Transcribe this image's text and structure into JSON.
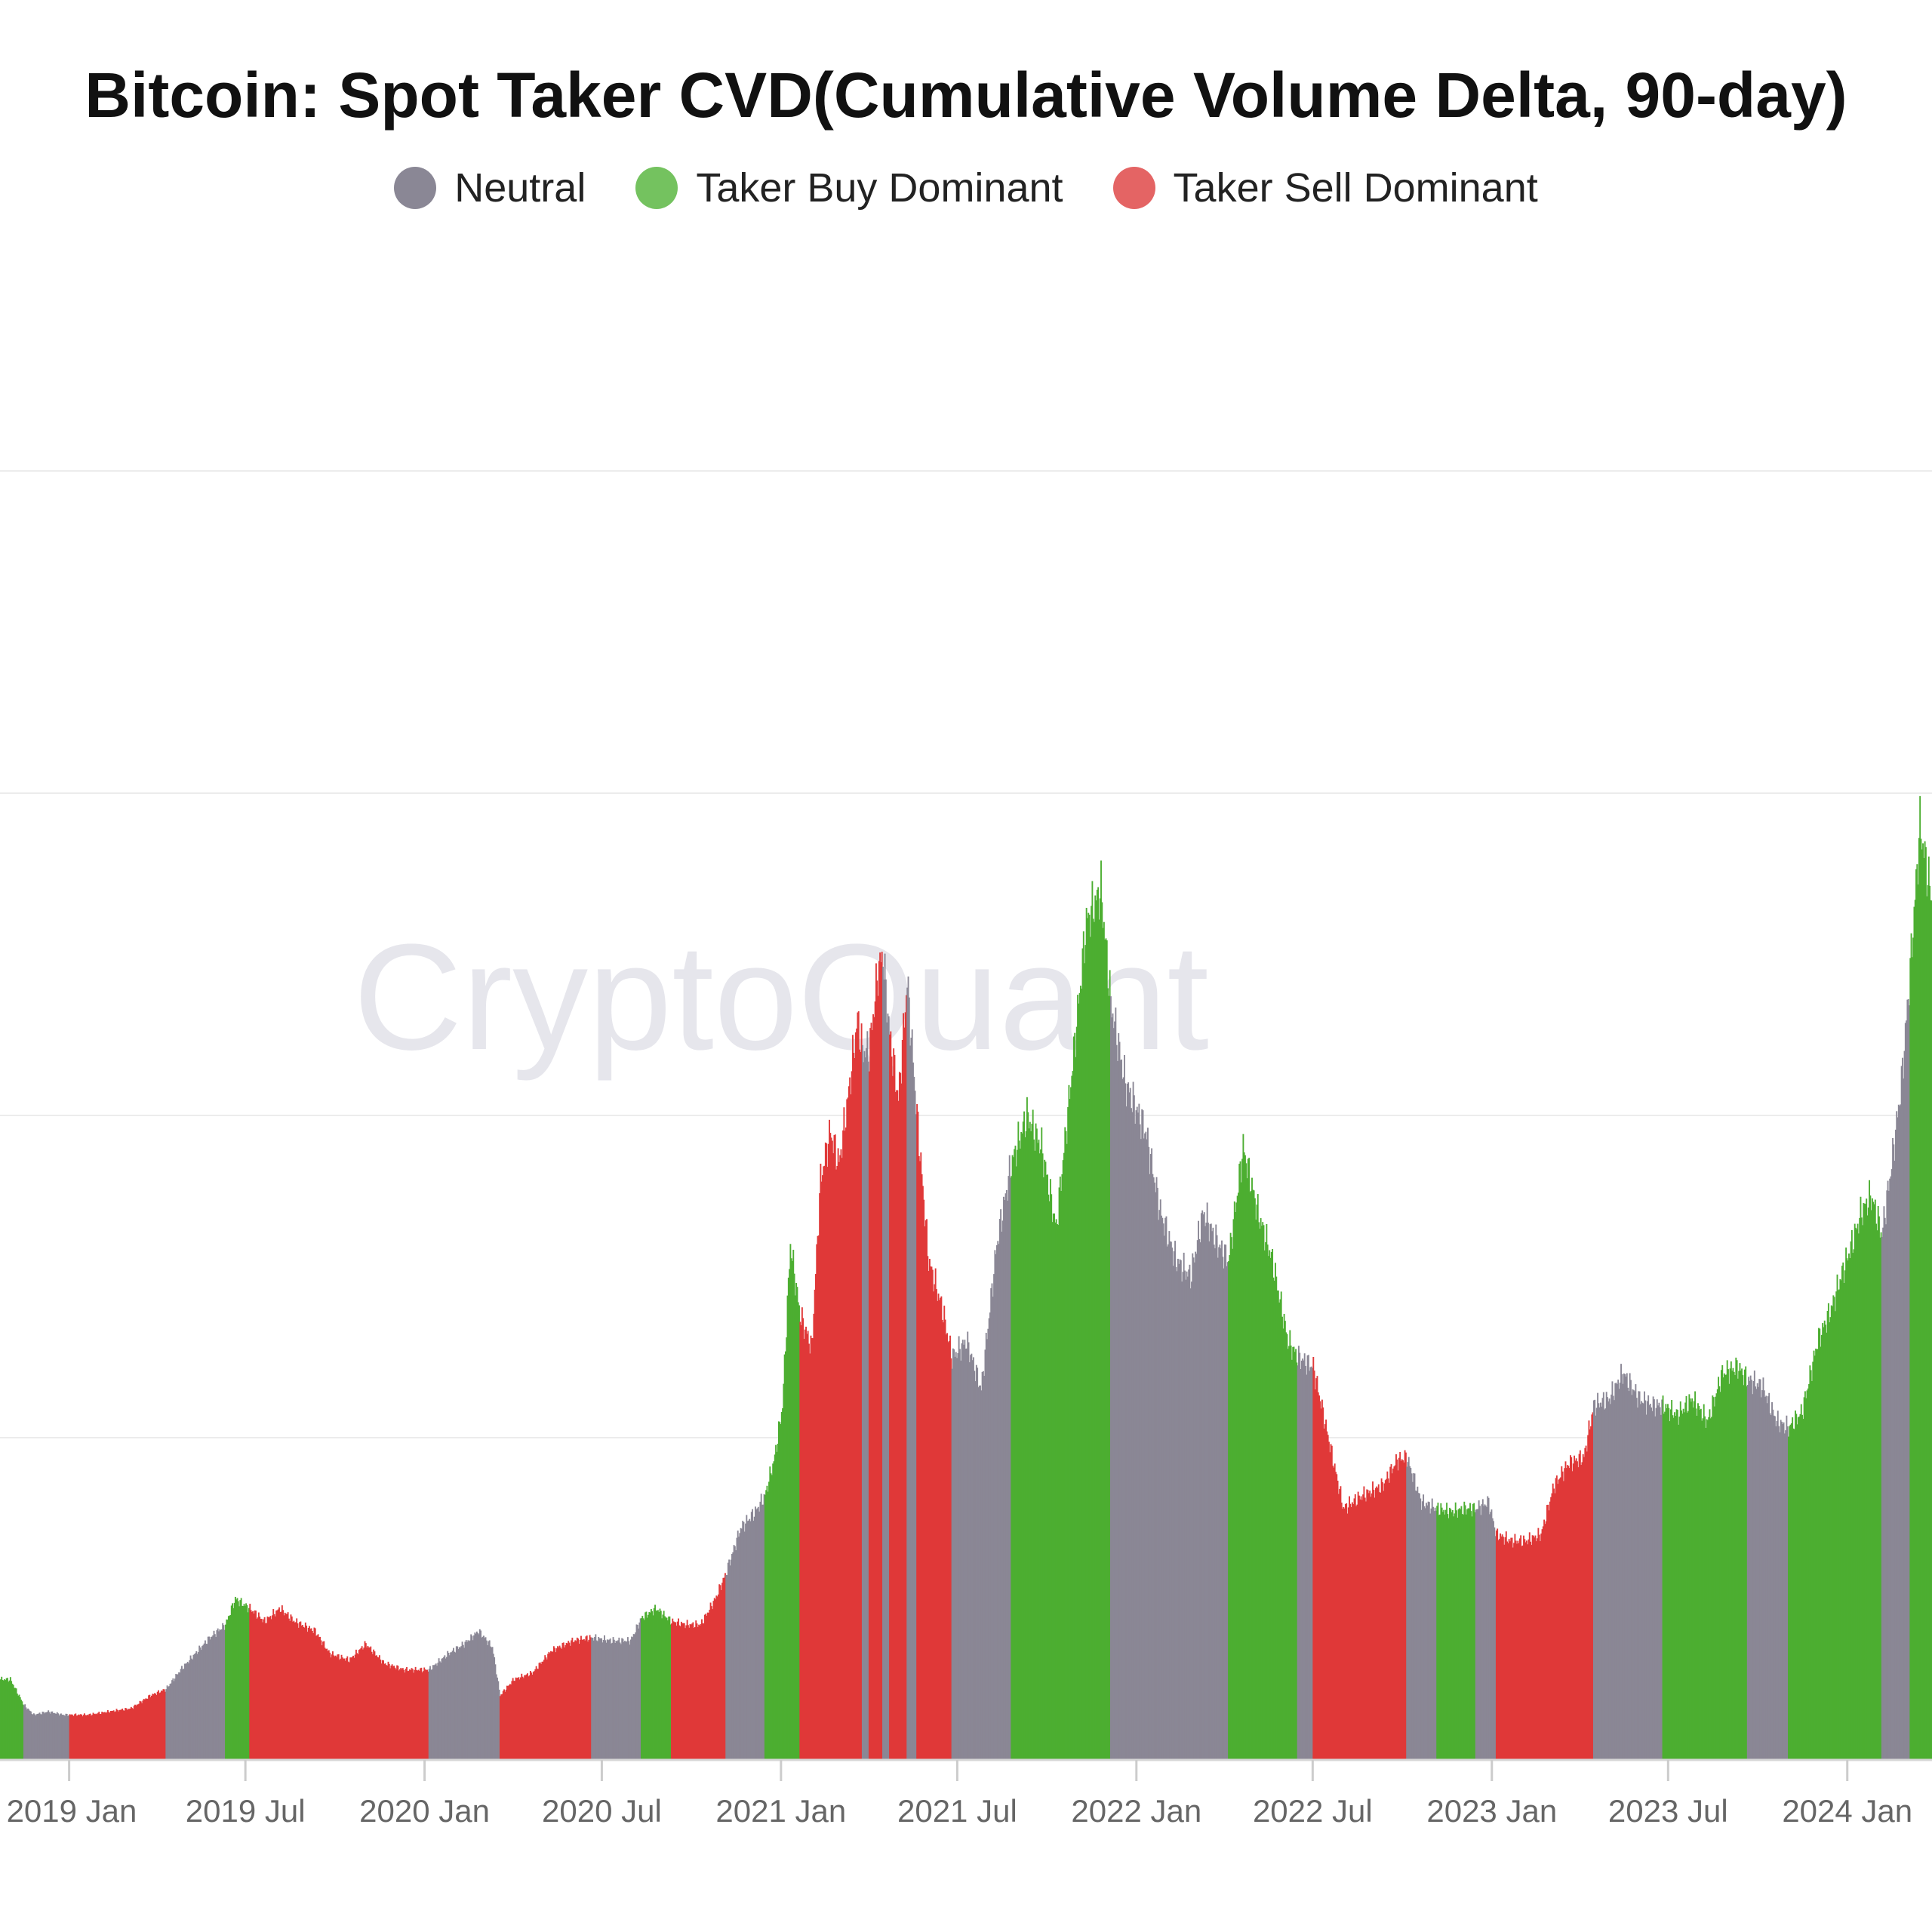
{
  "chart_data": {
    "type": "bar",
    "title": "Bitcoin: Spot Taker CVD(Cumulative Volume Delta, 90-day)",
    "watermark": "CryptoQuant",
    "legend": {
      "placement": "top-center",
      "items": [
        {
          "key": "neutral",
          "label": "Neutral",
          "color": "#8a8795"
        },
        {
          "key": "buy",
          "label": "Taker Buy Dominant",
          "color": "#4cae31"
        },
        {
          "key": "sell",
          "label": "Taker Sell Dominant",
          "color": "#e03838"
        }
      ]
    },
    "x_ticks": [
      "2019 Jan",
      "2019 Jul",
      "2020 Jan",
      "2020 Jul",
      "2021 Jan",
      "2021 Jul",
      "2022 Jan",
      "2022 Jul",
      "2023 Jan",
      "2023 Jul",
      "2024 Jan"
    ],
    "xlim": [
      "2018-10-22",
      "2024-03-28"
    ],
    "ylim": [
      0,
      4
    ],
    "y_unit_note": "",
    "grid": true,
    "points": [
      [
        "2018-10-22",
        0.25,
        "buy"
      ],
      [
        "2018-11-01",
        0.25,
        "buy"
      ],
      [
        "2018-11-08",
        0.21,
        "buy"
      ],
      [
        "2018-11-15",
        0.17,
        "neutral"
      ],
      [
        "2018-11-25",
        0.14,
        "neutral"
      ],
      [
        "2018-12-10",
        0.15,
        "neutral"
      ],
      [
        "2018-12-25",
        0.14,
        "neutral"
      ],
      [
        "2019-01-01",
        0.14,
        "sell"
      ],
      [
        "2019-01-20",
        0.14,
        "sell"
      ],
      [
        "2019-02-10",
        0.15,
        "sell"
      ],
      [
        "2019-03-05",
        0.16,
        "sell"
      ],
      [
        "2019-03-25",
        0.2,
        "sell"
      ],
      [
        "2019-04-10",
        0.22,
        "neutral"
      ],
      [
        "2019-04-25",
        0.28,
        "neutral"
      ],
      [
        "2019-05-10",
        0.33,
        "neutral"
      ],
      [
        "2019-05-25",
        0.38,
        "neutral"
      ],
      [
        "2019-06-10",
        0.42,
        "buy"
      ],
      [
        "2019-06-20",
        0.5,
        "buy"
      ],
      [
        "2019-07-05",
        0.47,
        "sell"
      ],
      [
        "2019-07-20",
        0.43,
        "sell"
      ],
      [
        "2019-08-05",
        0.47,
        "sell"
      ],
      [
        "2019-08-20",
        0.43,
        "sell"
      ],
      [
        "2019-09-10",
        0.4,
        "sell"
      ],
      [
        "2019-09-25",
        0.33,
        "sell"
      ],
      [
        "2019-10-15",
        0.31,
        "sell"
      ],
      [
        "2019-11-01",
        0.36,
        "sell"
      ],
      [
        "2019-11-20",
        0.3,
        "sell"
      ],
      [
        "2019-12-10",
        0.28,
        "sell"
      ],
      [
        "2020-01-05",
        0.28,
        "neutral"
      ],
      [
        "2020-01-25",
        0.33,
        "neutral"
      ],
      [
        "2020-02-10",
        0.36,
        "neutral"
      ],
      [
        "2020-02-25",
        0.4,
        "neutral"
      ],
      [
        "2020-03-10",
        0.35,
        "neutral"
      ],
      [
        "2020-03-18",
        0.2,
        "sell"
      ],
      [
        "2020-04-01",
        0.25,
        "sell"
      ],
      [
        "2020-04-20",
        0.27,
        "sell"
      ],
      [
        "2020-05-10",
        0.34,
        "sell"
      ],
      [
        "2020-06-01",
        0.37,
        "sell"
      ],
      [
        "2020-06-20",
        0.38,
        "neutral"
      ],
      [
        "2020-07-10",
        0.37,
        "neutral"
      ],
      [
        "2020-07-30",
        0.37,
        "neutral"
      ],
      [
        "2020-08-10",
        0.44,
        "buy"
      ],
      [
        "2020-08-25",
        0.47,
        "buy"
      ],
      [
        "2020-09-10",
        0.43,
        "sell"
      ],
      [
        "2020-09-25",
        0.42,
        "sell"
      ],
      [
        "2020-10-10",
        0.42,
        "sell"
      ],
      [
        "2020-10-25",
        0.5,
        "sell"
      ],
      [
        "2020-11-05",
        0.58,
        "neutral"
      ],
      [
        "2020-11-20",
        0.72,
        "neutral"
      ],
      [
        "2020-12-05",
        0.77,
        "neutral"
      ],
      [
        "2020-12-15",
        0.82,
        "buy"
      ],
      [
        "2020-12-25",
        0.94,
        "buy"
      ],
      [
        "2021-01-02",
        1.1,
        "buy"
      ],
      [
        "2021-01-10",
        1.6,
        "buy"
      ],
      [
        "2021-01-20",
        1.38,
        "sell"
      ],
      [
        "2021-02-01",
        1.28,
        "sell"
      ],
      [
        "2021-02-10",
        1.8,
        "sell"
      ],
      [
        "2021-02-20",
        1.95,
        "sell"
      ],
      [
        "2021-03-01",
        1.85,
        "sell"
      ],
      [
        "2021-03-10",
        2.05,
        "sell"
      ],
      [
        "2021-03-20",
        2.3,
        "sell"
      ],
      [
        "2021-03-25",
        2.2,
        "neutral"
      ],
      [
        "2021-04-01",
        2.2,
        "sell"
      ],
      [
        "2021-04-10",
        2.45,
        "sell"
      ],
      [
        "2021-04-15",
        2.5,
        "neutral"
      ],
      [
        "2021-04-22",
        2.25,
        "sell"
      ],
      [
        "2021-05-01",
        2.05,
        "sell"
      ],
      [
        "2021-05-10",
        2.42,
        "neutral"
      ],
      [
        "2021-05-20",
        2.0,
        "sell"
      ],
      [
        "2021-06-01",
        1.55,
        "sell"
      ],
      [
        "2021-06-15",
        1.4,
        "sell"
      ],
      [
        "2021-06-25",
        1.25,
        "neutral"
      ],
      [
        "2021-07-10",
        1.3,
        "neutral"
      ],
      [
        "2021-07-25",
        1.15,
        "neutral"
      ],
      [
        "2021-08-10",
        1.6,
        "neutral"
      ],
      [
        "2021-08-25",
        1.85,
        "buy"
      ],
      [
        "2021-09-10",
        2.0,
        "buy"
      ],
      [
        "2021-09-25",
        1.9,
        "buy"
      ],
      [
        "2021-10-10",
        1.65,
        "buy"
      ],
      [
        "2021-10-25",
        2.1,
        "buy"
      ],
      [
        "2021-11-10",
        2.6,
        "buy"
      ],
      [
        "2021-11-25",
        2.7,
        "buy"
      ],
      [
        "2021-12-05",
        2.35,
        "neutral"
      ],
      [
        "2021-12-20",
        2.1,
        "neutral"
      ],
      [
        "2022-01-10",
        1.95,
        "neutral"
      ],
      [
        "2022-01-25",
        1.7,
        "neutral"
      ],
      [
        "2022-02-10",
        1.55,
        "neutral"
      ],
      [
        "2022-02-25",
        1.5,
        "neutral"
      ],
      [
        "2022-03-10",
        1.7,
        "neutral"
      ],
      [
        "2022-03-25",
        1.6,
        "neutral"
      ],
      [
        "2022-04-05",
        1.55,
        "buy"
      ],
      [
        "2022-04-20",
        1.9,
        "buy"
      ],
      [
        "2022-05-05",
        1.7,
        "buy"
      ],
      [
        "2022-05-20",
        1.55,
        "buy"
      ],
      [
        "2022-06-05",
        1.3,
        "buy"
      ],
      [
        "2022-06-15",
        1.25,
        "neutral"
      ],
      [
        "2022-07-01",
        1.22,
        "sell"
      ],
      [
        "2022-07-15",
        1.02,
        "sell"
      ],
      [
        "2022-08-01",
        0.78,
        "sell"
      ],
      [
        "2022-08-20",
        0.82,
        "sell"
      ],
      [
        "2022-09-10",
        0.85,
        "sell"
      ],
      [
        "2022-09-25",
        0.93,
        "sell"
      ],
      [
        "2022-10-05",
        0.94,
        "neutral"
      ],
      [
        "2022-10-20",
        0.8,
        "neutral"
      ],
      [
        "2022-11-05",
        0.78,
        "buy"
      ],
      [
        "2022-11-20",
        0.77,
        "buy"
      ],
      [
        "2022-12-05",
        0.78,
        "buy"
      ],
      [
        "2022-12-15",
        0.78,
        "neutral"
      ],
      [
        "2022-12-28",
        0.8,
        "neutral"
      ],
      [
        "2023-01-05",
        0.7,
        "sell"
      ],
      [
        "2023-01-20",
        0.68,
        "sell"
      ],
      [
        "2023-02-05",
        0.68,
        "sell"
      ],
      [
        "2023-02-20",
        0.7,
        "sell"
      ],
      [
        "2023-03-05",
        0.85,
        "sell"
      ],
      [
        "2023-03-20",
        0.92,
        "sell"
      ],
      [
        "2023-04-05",
        0.94,
        "sell"
      ],
      [
        "2023-04-15",
        1.1,
        "neutral"
      ],
      [
        "2023-05-01",
        1.12,
        "neutral"
      ],
      [
        "2023-05-15",
        1.2,
        "neutral"
      ],
      [
        "2023-06-01",
        1.12,
        "neutral"
      ],
      [
        "2023-06-15",
        1.1,
        "neutral"
      ],
      [
        "2023-06-25",
        1.1,
        "buy"
      ],
      [
        "2023-07-10",
        1.07,
        "buy"
      ],
      [
        "2023-07-25",
        1.12,
        "buy"
      ],
      [
        "2023-08-10",
        1.05,
        "buy"
      ],
      [
        "2023-08-25",
        1.2,
        "buy"
      ],
      [
        "2023-09-10",
        1.22,
        "buy"
      ],
      [
        "2023-09-20",
        1.18,
        "neutral"
      ],
      [
        "2023-10-05",
        1.16,
        "neutral"
      ],
      [
        "2023-10-20",
        1.05,
        "neutral"
      ],
      [
        "2023-11-01",
        1.03,
        "buy"
      ],
      [
        "2023-11-15",
        1.08,
        "buy"
      ],
      [
        "2023-12-01",
        1.3,
        "buy"
      ],
      [
        "2023-12-15",
        1.4,
        "buy"
      ],
      [
        "2023-12-25",
        1.5,
        "buy"
      ],
      [
        "2024-01-05",
        1.6,
        "buy"
      ],
      [
        "2024-01-15",
        1.7,
        "buy"
      ],
      [
        "2024-01-25",
        1.75,
        "buy"
      ],
      [
        "2024-02-05",
        1.63,
        "neutral"
      ],
      [
        "2024-02-15",
        1.85,
        "neutral"
      ],
      [
        "2024-02-25",
        2.1,
        "neutral"
      ],
      [
        "2024-03-05",
        2.45,
        "buy"
      ],
      [
        "2024-03-15",
        2.9,
        "buy"
      ],
      [
        "2024-03-28",
        2.65,
        "buy"
      ]
    ]
  }
}
